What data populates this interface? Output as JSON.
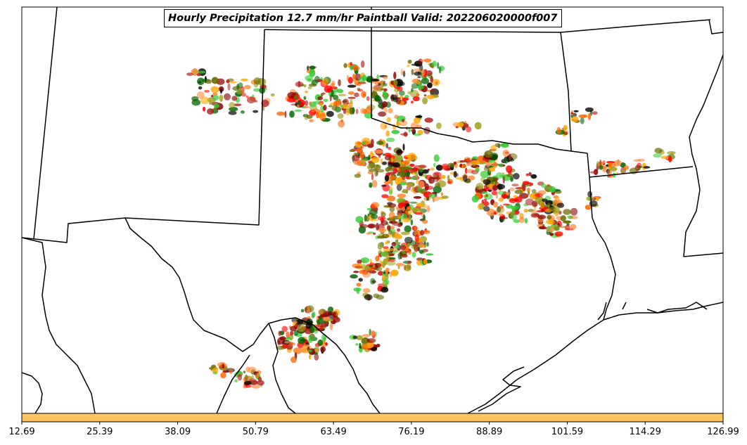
{
  "map": {
    "title": "Hourly Precipitation 12.7 mm/hr Paintball Valid: 202206020000f007"
  },
  "colorbar": {
    "fill_color": "#fdc462",
    "ticks": [
      "12.69",
      "25.39",
      "38.09",
      "50.79",
      "63.49",
      "76.19",
      "88.89",
      "101.59",
      "114.29",
      "126.99"
    ]
  },
  "paintball_colors": [
    "#ff0000",
    "#8b0000",
    "#000000",
    "#ffa500",
    "#ff6a00",
    "#ff8c42",
    "#32cd32",
    "#006400",
    "#a0a020",
    "#6b6b00",
    "#b22222"
  ]
}
